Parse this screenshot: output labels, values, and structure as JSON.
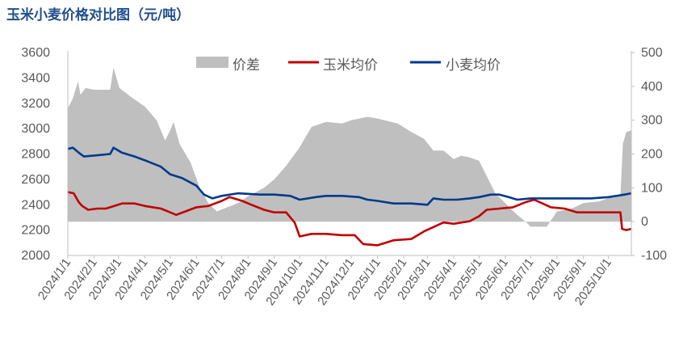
{
  "title": "玉米小麦价格对比图（元/吨）",
  "chart_data": {
    "type": "line",
    "legend_position": "top-center",
    "grid": false,
    "left_axis": {
      "ticks": [
        "2000",
        "2200",
        "2400",
        "2600",
        "2800",
        "3000",
        "3200",
        "3400",
        "3600"
      ],
      "range": [
        2000,
        3600
      ]
    },
    "right_axis": {
      "ticks": [
        "-100",
        "0",
        "100",
        "200",
        "300",
        "400",
        "500"
      ],
      "range": [
        -100,
        500
      ]
    },
    "x_ticks": [
      "2024/1/1",
      "2024/2/1",
      "2024/3/1",
      "2024/4/1",
      "2024/5/1",
      "2024/6/1",
      "2024/7/1",
      "2024/8/1",
      "2024/9/1",
      "2024/10/1",
      "2024/11/1",
      "2024/12/1",
      "2025/1/1",
      "2025/2/1",
      "2025/3/1",
      "2025/4/1",
      "2025/5/1",
      "2025/6/1",
      "2025/7/1",
      "2025/8/1",
      "2025/9/1",
      "2025/10/1"
    ],
    "x_range": [
      "2024-01-01",
      "2025-10-28"
    ],
    "series": [
      {
        "name": "价差",
        "type": "area",
        "axis": "right",
        "color": "#bfbfbf",
        "points": [
          [
            "2024-01-01",
            335
          ],
          [
            "2024-01-07",
            365
          ],
          [
            "2024-01-13",
            415
          ],
          [
            "2024-01-16",
            375
          ],
          [
            "2024-01-22",
            395
          ],
          [
            "2024-02-01",
            390
          ],
          [
            "2024-02-20",
            390
          ],
          [
            "2024-02-24",
            455
          ],
          [
            "2024-03-02",
            395
          ],
          [
            "2024-03-15",
            370
          ],
          [
            "2024-04-01",
            340
          ],
          [
            "2024-04-15",
            300
          ],
          [
            "2024-04-25",
            240
          ],
          [
            "2024-05-01",
            270
          ],
          [
            "2024-05-05",
            295
          ],
          [
            "2024-05-12",
            230
          ],
          [
            "2024-05-25",
            175
          ],
          [
            "2024-06-05",
            100
          ],
          [
            "2024-06-15",
            55
          ],
          [
            "2024-06-25",
            30
          ],
          [
            "2024-07-05",
            40
          ],
          [
            "2024-07-20",
            55
          ],
          [
            "2024-08-01",
            75
          ],
          [
            "2024-08-20",
            100
          ],
          [
            "2024-09-01",
            125
          ],
          [
            "2024-09-15",
            165
          ],
          [
            "2024-10-01",
            220
          ],
          [
            "2024-10-15",
            280
          ],
          [
            "2024-11-01",
            295
          ],
          [
            "2024-11-20",
            290
          ],
          [
            "2024-12-01",
            300
          ],
          [
            "2024-12-20",
            310
          ],
          [
            "2025-01-01",
            305
          ],
          [
            "2025-01-25",
            290
          ],
          [
            "2025-02-10",
            265
          ],
          [
            "2025-02-25",
            245
          ],
          [
            "2025-03-08",
            210
          ],
          [
            "2025-03-20",
            210
          ],
          [
            "2025-04-01",
            185
          ],
          [
            "2025-04-10",
            195
          ],
          [
            "2025-04-20",
            190
          ],
          [
            "2025-05-01",
            180
          ],
          [
            "2025-05-10",
            135
          ],
          [
            "2025-05-20",
            85
          ],
          [
            "2025-06-01",
            55
          ],
          [
            "2025-06-15",
            20
          ],
          [
            "2025-06-25",
            0
          ],
          [
            "2025-07-01",
            -15
          ],
          [
            "2025-07-20",
            -15
          ],
          [
            "2025-08-01",
            30
          ],
          [
            "2025-08-20",
            40
          ],
          [
            "2025-09-01",
            55
          ],
          [
            "2025-09-20",
            60
          ],
          [
            "2025-10-01",
            70
          ],
          [
            "2025-10-15",
            75
          ],
          [
            "2025-10-18",
            230
          ],
          [
            "2025-10-22",
            265
          ],
          [
            "2025-10-28",
            270
          ]
        ]
      },
      {
        "name": "玉米均价",
        "type": "line",
        "axis": "left",
        "color": "#c00000",
        "points": [
          [
            "2024-01-01",
            2500
          ],
          [
            "2024-01-08",
            2490
          ],
          [
            "2024-01-14",
            2420
          ],
          [
            "2024-01-18",
            2390
          ],
          [
            "2024-01-25",
            2360
          ],
          [
            "2024-02-05",
            2370
          ],
          [
            "2024-02-15",
            2370
          ],
          [
            "2024-02-25",
            2390
          ],
          [
            "2024-03-05",
            2410
          ],
          [
            "2024-03-20",
            2410
          ],
          [
            "2024-04-01",
            2390
          ],
          [
            "2024-04-20",
            2370
          ],
          [
            "2024-05-01",
            2340
          ],
          [
            "2024-05-08",
            2320
          ],
          [
            "2024-05-20",
            2350
          ],
          [
            "2024-06-01",
            2380
          ],
          [
            "2024-06-15",
            2390
          ],
          [
            "2024-07-01",
            2430
          ],
          [
            "2024-07-10",
            2460
          ],
          [
            "2024-07-25",
            2430
          ],
          [
            "2024-08-05",
            2400
          ],
          [
            "2024-08-20",
            2360
          ],
          [
            "2024-09-01",
            2340
          ],
          [
            "2024-09-15",
            2340
          ],
          [
            "2024-09-25",
            2260
          ],
          [
            "2024-10-01",
            2150
          ],
          [
            "2024-10-15",
            2170
          ],
          [
            "2024-11-01",
            2170
          ],
          [
            "2024-11-20",
            2160
          ],
          [
            "2024-12-05",
            2160
          ],
          [
            "2024-12-15",
            2090
          ],
          [
            "2025-01-01",
            2080
          ],
          [
            "2025-01-20",
            2120
          ],
          [
            "2025-02-10",
            2130
          ],
          [
            "2025-02-25",
            2190
          ],
          [
            "2025-03-10",
            2230
          ],
          [
            "2025-03-20",
            2260
          ],
          [
            "2025-04-01",
            2250
          ],
          [
            "2025-04-20",
            2270
          ],
          [
            "2025-05-01",
            2310
          ],
          [
            "2025-05-10",
            2360
          ],
          [
            "2025-05-25",
            2370
          ],
          [
            "2025-06-10",
            2380
          ],
          [
            "2025-06-25",
            2420
          ],
          [
            "2025-07-05",
            2440
          ],
          [
            "2025-07-15",
            2410
          ],
          [
            "2025-07-25",
            2380
          ],
          [
            "2025-08-10",
            2370
          ],
          [
            "2025-08-25",
            2340
          ],
          [
            "2025-09-10",
            2340
          ],
          [
            "2025-10-01",
            2340
          ],
          [
            "2025-10-15",
            2340
          ],
          [
            "2025-10-17",
            2210
          ],
          [
            "2025-10-22",
            2200
          ],
          [
            "2025-10-28",
            2210
          ]
        ]
      },
      {
        "name": "小麦均价",
        "type": "line",
        "axis": "left",
        "color": "#003a8c",
        "points": [
          [
            "2024-01-01",
            2840
          ],
          [
            "2024-01-07",
            2850
          ],
          [
            "2024-01-14",
            2810
          ],
          [
            "2024-01-20",
            2780
          ],
          [
            "2024-02-05",
            2790
          ],
          [
            "2024-02-20",
            2800
          ],
          [
            "2024-02-24",
            2850
          ],
          [
            "2024-03-05",
            2810
          ],
          [
            "2024-03-20",
            2780
          ],
          [
            "2024-04-05",
            2740
          ],
          [
            "2024-04-20",
            2700
          ],
          [
            "2024-05-01",
            2640
          ],
          [
            "2024-05-15",
            2610
          ],
          [
            "2024-06-01",
            2550
          ],
          [
            "2024-06-10",
            2480
          ],
          [
            "2024-06-20",
            2450
          ],
          [
            "2024-07-01",
            2470
          ],
          [
            "2024-07-20",
            2490
          ],
          [
            "2024-08-15",
            2480
          ],
          [
            "2024-09-01",
            2480
          ],
          [
            "2024-09-20",
            2470
          ],
          [
            "2024-10-01",
            2440
          ],
          [
            "2024-10-20",
            2460
          ],
          [
            "2024-11-01",
            2470
          ],
          [
            "2024-11-20",
            2470
          ],
          [
            "2024-12-10",
            2460
          ],
          [
            "2024-12-20",
            2440
          ],
          [
            "2025-01-01",
            2430
          ],
          [
            "2025-01-20",
            2410
          ],
          [
            "2025-02-10",
            2410
          ],
          [
            "2025-03-01",
            2400
          ],
          [
            "2025-03-08",
            2450
          ],
          [
            "2025-03-20",
            2440
          ],
          [
            "2025-04-05",
            2440
          ],
          [
            "2025-04-20",
            2450
          ],
          [
            "2025-05-01",
            2460
          ],
          [
            "2025-05-15",
            2480
          ],
          [
            "2025-05-25",
            2480
          ],
          [
            "2025-06-05",
            2460
          ],
          [
            "2025-06-15",
            2440
          ],
          [
            "2025-07-01",
            2450
          ],
          [
            "2025-07-20",
            2450
          ],
          [
            "2025-08-15",
            2450
          ],
          [
            "2025-09-10",
            2450
          ],
          [
            "2025-10-01",
            2460
          ],
          [
            "2025-10-20",
            2480
          ],
          [
            "2025-10-28",
            2490
          ]
        ]
      }
    ]
  }
}
